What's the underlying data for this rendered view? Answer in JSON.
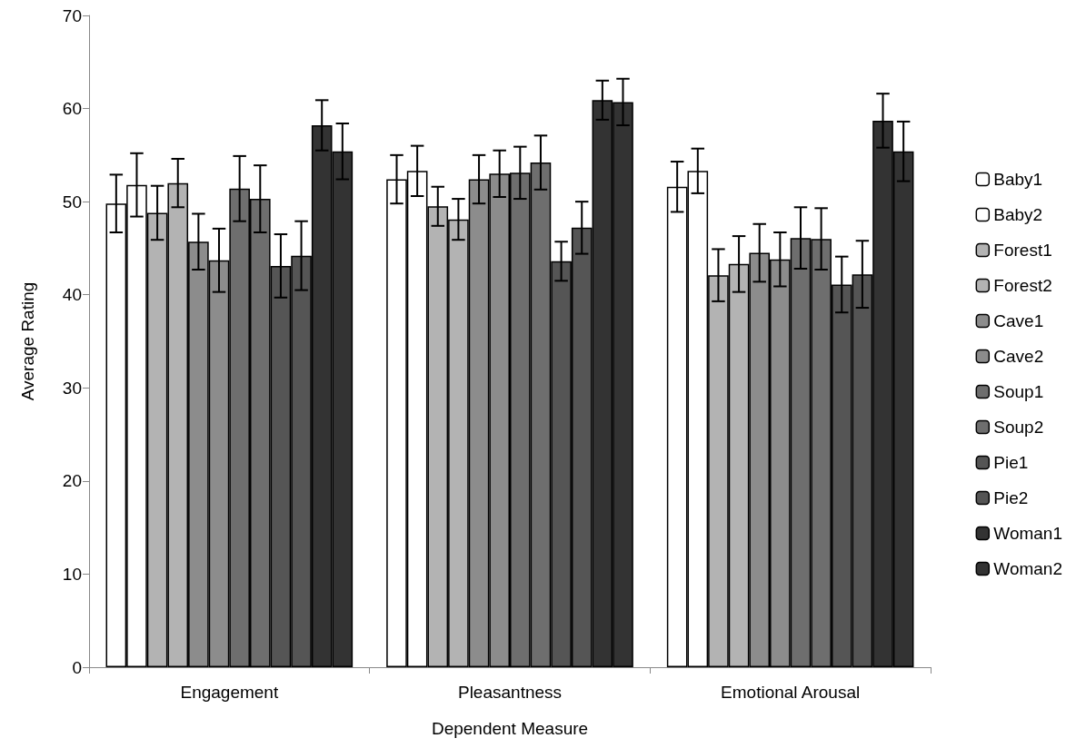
{
  "chart_data": {
    "type": "bar",
    "xlabel": "Dependent Measure",
    "ylabel": "Average Rating",
    "categories": [
      "Engagement",
      "Pleasantness",
      "Emotional Arousal"
    ],
    "ylim": [
      0,
      70
    ],
    "yticks": [
      0,
      10,
      20,
      30,
      40,
      50,
      60,
      70
    ],
    "grid": false,
    "legend": "right",
    "series": [
      {
        "name": "Baby1",
        "color": "#ffffff",
        "values": [
          49.8,
          52.4,
          51.6
        ],
        "errors": [
          3.1,
          2.6,
          2.7
        ]
      },
      {
        "name": "Baby2",
        "color": "#ffffff",
        "values": [
          51.8,
          53.3,
          53.3
        ],
        "errors": [
          3.4,
          2.7,
          2.4
        ]
      },
      {
        "name": "Forest1",
        "color": "#b3b3b3",
        "values": [
          48.8,
          49.5,
          42.1
        ],
        "errors": [
          2.9,
          2.1,
          2.8
        ]
      },
      {
        "name": "Forest2",
        "color": "#b3b3b3",
        "values": [
          52.0,
          48.1,
          43.3
        ],
        "errors": [
          2.6,
          2.2,
          3.0
        ]
      },
      {
        "name": "Cave1",
        "color": "#8c8c8c",
        "values": [
          45.7,
          52.4,
          44.5
        ],
        "errors": [
          3.0,
          2.6,
          3.1
        ]
      },
      {
        "name": "Cave2",
        "color": "#8c8c8c",
        "values": [
          43.7,
          53.0,
          43.8
        ],
        "errors": [
          3.4,
          2.5,
          2.9
        ]
      },
      {
        "name": "Soup1",
        "color": "#6e6e6e",
        "values": [
          51.4,
          53.1,
          46.1
        ],
        "errors": [
          3.5,
          2.8,
          3.3
        ]
      },
      {
        "name": "Soup2",
        "color": "#6e6e6e",
        "values": [
          50.3,
          54.2,
          46.0
        ],
        "errors": [
          3.6,
          2.9,
          3.3
        ]
      },
      {
        "name": "Pie1",
        "color": "#555555",
        "values": [
          43.1,
          43.6,
          41.1
        ],
        "errors": [
          3.4,
          2.1,
          3.0
        ]
      },
      {
        "name": "Pie2",
        "color": "#555555",
        "values": [
          44.2,
          47.2,
          42.2
        ],
        "errors": [
          3.7,
          2.8,
          3.6
        ]
      },
      {
        "name": "Woman1",
        "color": "#333333",
        "values": [
          58.2,
          60.9,
          58.7
        ],
        "errors": [
          2.7,
          2.1,
          2.9
        ]
      },
      {
        "name": "Woman2",
        "color": "#333333",
        "values": [
          55.4,
          60.7,
          55.4
        ],
        "errors": [
          3.0,
          2.5,
          3.2
        ]
      }
    ]
  }
}
